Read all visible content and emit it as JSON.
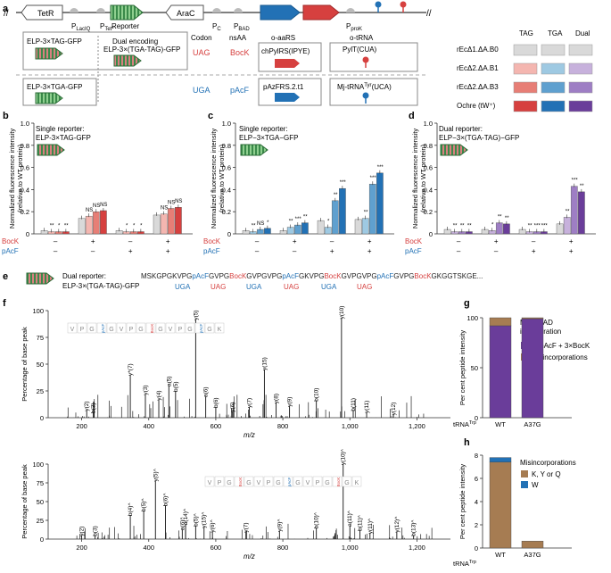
{
  "colors": {
    "gray": "#d9d9d9",
    "red": "#d6403f",
    "blue": "#2271b5",
    "purple": "#6a3d9a",
    "brown": "#a67c52",
    "lightred": "#f4b6b0",
    "lightblue": "#9ec9e2",
    "lightpurple": "#c7b1dc",
    "midred": "#e77e76",
    "midblue": "#5fa0cf",
    "midpurple": "#9e7ec4"
  },
  "a": {
    "label": "a",
    "genes": {
      "tetr": "TetR",
      "p_lacq": "P",
      "p_lacq_sub": "LacIQ",
      "p_tet": "P",
      "p_tet_sub": "Tet*",
      "reporter": "Reporter",
      "arac": "AraC",
      "p_c": "P",
      "p_c_sub": "C",
      "p_bad": "P",
      "p_bad_sub": "BAD",
      "p_prok": "P",
      "p_prok_sub": "proK"
    },
    "cols": {
      "codon": "Codon",
      "nsaa": "nsAA",
      "oaars": "o-aaRS",
      "otrna": "o-tRNA"
    },
    "row1": {
      "r1": "ELP-3×TAG-GFP",
      "r2a": "Dual encoding",
      "r2b": "ELP-3×(TGA-TAG)-GFP",
      "codon": "UAG",
      "nsaa": "BocK",
      "aars": "chPylRS(IPYE)",
      "trna": "PylT(CUA)"
    },
    "row2": {
      "r1": "ELP-3×TGA-GFP",
      "codon": "UGA",
      "nsaa": "pAcF",
      "aars": "pAzFRS.2.t1",
      "trna_pre": "Mj-tRNA",
      "trna_sup": "Tyr",
      "trna_post": "(UCA)"
    },
    "legend": {
      "cols": [
        "TAG",
        "TGA",
        "Dual"
      ],
      "rows": [
        "rEcΔ1.ΔA.B0",
        "rEcΔ2.ΔA.B1",
        "rEcΔ2.ΔA.B3",
        "Ochre (tW⁺)"
      ]
    }
  },
  "b": {
    "label": "b",
    "title1": "Single reporter:",
    "title2": "ELP-3×TAG-GFP"
  },
  "c": {
    "label": "c",
    "title1": "Single reporter:",
    "title2": "ELP−3×TGA−GFP"
  },
  "d": {
    "label": "d",
    "title1": "Dual reporter:",
    "title2": "ELP−3×(TGA-TAG)−GFP"
  },
  "ylabel1": "Normalized fluorescence intensity",
  "ylabel2": "(relative to WT protein)",
  "cond": {
    "bock": "BocK",
    "pacf": "pAcF",
    "plus": "+",
    "minus": "–"
  },
  "chart_data": [
    {
      "type": "bar",
      "panel": "b",
      "ylim": [
        0,
        1.0
      ],
      "yticks": [
        "0",
        "0.2",
        "0.4",
        "0.6",
        "0.8",
        "1.0"
      ],
      "groups": [
        {
          "bock": "–",
          "pacf": "–"
        },
        {
          "bock": "+",
          "pacf": "–"
        },
        {
          "bock": "–",
          "pacf": "+"
        },
        {
          "bock": "+",
          "pacf": "+"
        }
      ],
      "series": [
        "gray",
        "lightred",
        "midred",
        "red"
      ],
      "values": [
        [
          0.03,
          0.02,
          0.02,
          0.02
        ],
        [
          0.14,
          0.16,
          0.2,
          0.21
        ],
        [
          0.03,
          0.02,
          0.02,
          0.02
        ],
        [
          0.17,
          0.18,
          0.23,
          0.24
        ]
      ],
      "sig": [
        [
          "",
          "**",
          "*",
          "**"
        ],
        [
          "",
          "NS",
          "NS",
          "NS"
        ],
        [
          "",
          "*",
          "*",
          "*"
        ],
        [
          "",
          "NS",
          "NS",
          "NS"
        ]
      ]
    },
    {
      "type": "bar",
      "panel": "c",
      "ylim": [
        0,
        1.0
      ],
      "yticks": [
        "0",
        "0.2",
        "0.4",
        "0.6",
        "0.8",
        "1.0"
      ],
      "groups": [
        {
          "bock": "–",
          "pacf": "–"
        },
        {
          "bock": "+",
          "pacf": "–"
        },
        {
          "bock": "–",
          "pacf": "+"
        },
        {
          "bock": "+",
          "pacf": "+"
        }
      ],
      "series": [
        "gray",
        "lightblue",
        "midblue",
        "blue"
      ],
      "values": [
        [
          0.03,
          0.02,
          0.04,
          0.05
        ],
        [
          0.03,
          0.06,
          0.08,
          0.1
        ],
        [
          0.12,
          0.06,
          0.3,
          0.41
        ],
        [
          0.13,
          0.14,
          0.45,
          0.55
        ]
      ],
      "sig": [
        [
          "",
          "**",
          "NS",
          "*"
        ],
        [
          "",
          "**",
          "***",
          "**"
        ],
        [
          "",
          "*",
          "**",
          "***"
        ],
        [
          "",
          "**",
          "***",
          "***"
        ]
      ]
    },
    {
      "type": "bar",
      "panel": "d",
      "ylim": [
        0,
        1.0
      ],
      "yticks": [
        "0",
        "0.2",
        "0.4",
        "0.6",
        "0.8",
        "1.0"
      ],
      "groups": [
        {
          "bock": "–",
          "pacf": "–"
        },
        {
          "bock": "+",
          "pacf": "–"
        },
        {
          "bock": "–",
          "pacf": "+"
        },
        {
          "bock": "+",
          "pacf": "+"
        }
      ],
      "series": [
        "gray",
        "lightpurple",
        "midpurple",
        "purple"
      ],
      "values": [
        [
          0.04,
          0.02,
          0.02,
          0.02
        ],
        [
          0.04,
          0.03,
          0.1,
          0.09
        ],
        [
          0.04,
          0.02,
          0.02,
          0.02
        ],
        [
          0.09,
          0.15,
          0.43,
          0.38
        ]
      ],
      "sig": [
        [
          "",
          "**",
          "**",
          "**"
        ],
        [
          "",
          "*",
          "**",
          "**"
        ],
        [
          "",
          "**",
          "***",
          "***"
        ],
        [
          "",
          "**",
          "***",
          "**"
        ]
      ]
    },
    {
      "type": "bar",
      "panel": "g",
      "stacked": true,
      "ylabel": "Per cent peptide intensity",
      "ylim": [
        0,
        100
      ],
      "yticks": [
        "0",
        "50",
        "100"
      ],
      "categories": [
        "WT",
        "A37G"
      ],
      "series": [
        {
          "name": "3×pAcF + 3×BocK",
          "color": "purple",
          "values": [
            92,
            99
          ]
        },
        {
          "name": "Misincorporations",
          "color": "brown",
          "values": [
            8,
            1
          ]
        }
      ]
    },
    {
      "type": "bar",
      "panel": "h",
      "stacked": true,
      "ylabel": "Per cent peptide intensity",
      "ylim": [
        0,
        8
      ],
      "yticks": [
        "0",
        "2",
        "4",
        "6",
        "8"
      ],
      "categories": [
        "WT",
        "A37G"
      ],
      "series": [
        {
          "name": "K, Y or Q",
          "color": "brown",
          "values": [
            7.4,
            0.6
          ]
        },
        {
          "name": "W",
          "color": "blue",
          "values": [
            0.4,
            0.0
          ]
        }
      ]
    }
  ],
  "e": {
    "label": "e",
    "title1": "Dual reporter:",
    "title2": "ELP-3×(TGA-TAG)-GFP",
    "seq": [
      {
        "t": "MSKGPGK",
        "c": "k"
      },
      {
        "t": "VPG",
        "c": "k"
      },
      {
        "t": "pAcF",
        "c": "b"
      },
      {
        "t": "GVPG",
        "c": "k"
      },
      {
        "t": "BocK",
        "c": "r"
      },
      {
        "t": "GVPG",
        "c": "k"
      },
      {
        "t": "VPG",
        "c": "k"
      },
      {
        "t": "pAcF",
        "c": "b"
      },
      {
        "t": "GK",
        "c": "k"
      },
      {
        "t": "VPG",
        "c": "k"
      },
      {
        "t": "BocK",
        "c": "r"
      },
      {
        "t": "GVPG",
        "c": "k"
      },
      {
        "t": "VPG",
        "c": "k"
      },
      {
        "t": "pAcF",
        "c": "b"
      },
      {
        "t": "GVPG",
        "c": "k"
      },
      {
        "t": "BocK",
        "c": "r"
      },
      {
        "t": "GK",
        "c": "k"
      },
      {
        "t": "GGTSKGE...",
        "c": "k"
      }
    ],
    "codons": [
      {
        "t": "UGA",
        "c": "b"
      },
      {
        "t": "UAG",
        "c": "r"
      },
      {
        "t": "UGA",
        "c": "b"
      },
      {
        "t": "UAG",
        "c": "r"
      },
      {
        "t": "UGA",
        "c": "b"
      },
      {
        "t": "UAG",
        "c": "r"
      }
    ]
  },
  "f": {
    "label": "f",
    "ylabel": "Percentage of base peak",
    "xlabel": "m/z",
    "xticks": [
      "200",
      "400",
      "600",
      "800",
      "1,000",
      "1,200"
    ],
    "yticks": [
      "0",
      "25",
      "50",
      "75",
      "100"
    ],
    "top_peaks": [
      "b(3)",
      "y(2)",
      "y*(7)",
      "y(3)",
      "y(4)",
      "a(5)",
      "b(5)",
      "y(5)",
      "a(6)",
      "b(6)",
      "y(6)",
      "y(7)",
      "y(15)",
      "y(8)",
      "y(9)",
      "b(10)",
      "y(10)",
      "b(11)",
      "y(11)",
      "y(12)"
    ],
    "bot_peaks": [
      "y(2)",
      "b(3)",
      "b(4)^",
      "b(5)^",
      "y(5)^",
      "b(6)^",
      "a(6)^",
      "a(14)^",
      "b(5)^",
      "y(15)^",
      "y(6)^",
      "y(7)",
      "y(9)^",
      "b(10)^",
      "y(10)^",
      "a(11)^",
      "b(11)^",
      "y(11)^",
      "y(12)^",
      "b(13)^"
    ],
    "top_seq": [
      "V",
      "P",
      "G",
      "pAcF",
      "G",
      "V",
      "P",
      "G",
      "BocK",
      "G",
      "V",
      "P",
      "G",
      "pAcF",
      "G",
      "K"
    ],
    "bot_seq": [
      "V",
      "P",
      "G",
      "BocK",
      "G",
      "V",
      "P",
      "G",
      "pAcF",
      "G",
      "V",
      "P",
      "G",
      "BocK",
      "G",
      "K"
    ]
  },
  "g": {
    "label": "g",
    "title1": "MS-READ",
    "title2": "incorporation",
    "legend": [
      "3×pAcF + 3×BocK",
      "Misincorporations"
    ],
    "xlabel": "tRNA",
    "xlabel_sup": "Trp"
  },
  "h": {
    "label": "h",
    "title": "Misincorporations",
    "legend": [
      "K, Y or Q",
      "W"
    ],
    "xlabel": "tRNA",
    "xlabel_sup": "Trp"
  }
}
